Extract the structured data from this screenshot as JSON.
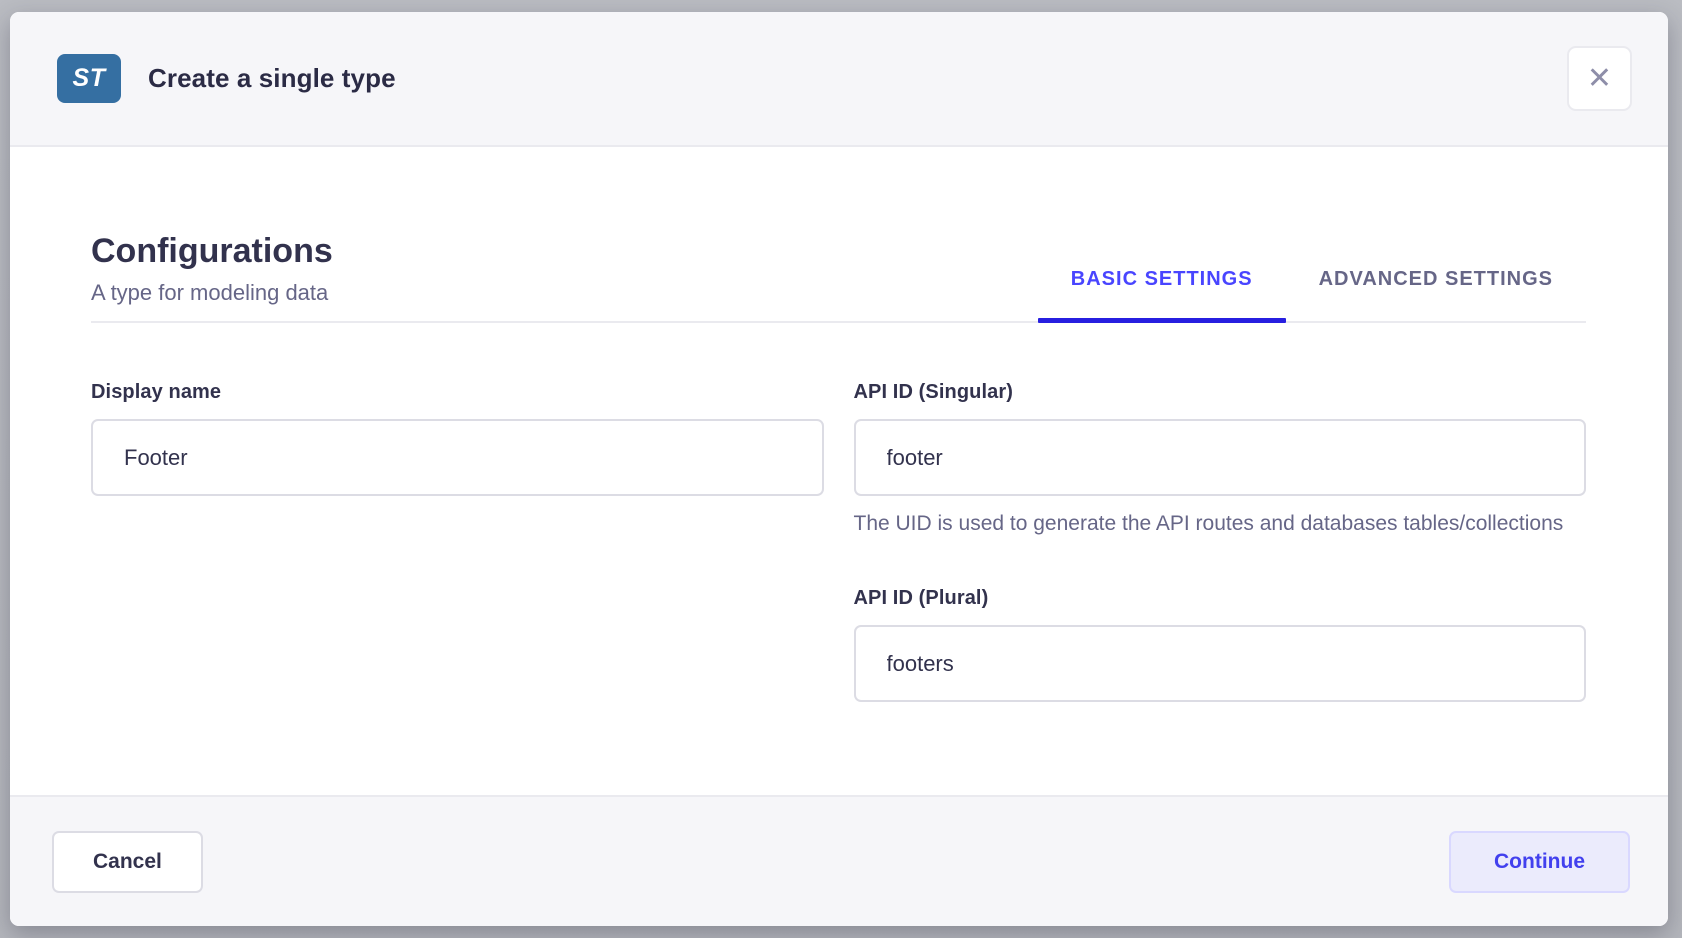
{
  "dialog": {
    "badge_label": "ST",
    "title": "Create a single type"
  },
  "icons": {
    "close": "✕"
  },
  "content": {
    "heading": "Configurations",
    "subtitle": "A type for modeling data",
    "tabs": [
      {
        "label": "BASIC SETTINGS",
        "state": "active"
      },
      {
        "label": "ADVANCED SETTINGS",
        "state": "inactive"
      }
    ],
    "fields": {
      "display_name": {
        "label": "Display name",
        "value": "Footer"
      },
      "api_id_singular": {
        "label": "API ID (Singular)",
        "value": "footer",
        "helper": "The UID is used to generate the API routes and databases tables/collections"
      },
      "api_id_plural": {
        "label": "API ID (Plural)",
        "value": "footers"
      }
    }
  },
  "footer": {
    "cancel_label": "Cancel",
    "continue_label": "Continue"
  },
  "colors": {
    "badge_blue": "#356fa2",
    "accent_primary": "#4945ff",
    "tab_underline": "#271fe0",
    "continue_bg": "#ebebfc",
    "continue_border": "#d9d8ff",
    "continue_text": "#4240ee",
    "text_dark": "#32324d",
    "text_muted": "#666687",
    "icon_gray": "#8e8ea9",
    "surface_gray": "#f6f6f9",
    "divider": "#eaeaef",
    "input_border": "#dcdce4",
    "backdrop": "#b9bbc1"
  }
}
